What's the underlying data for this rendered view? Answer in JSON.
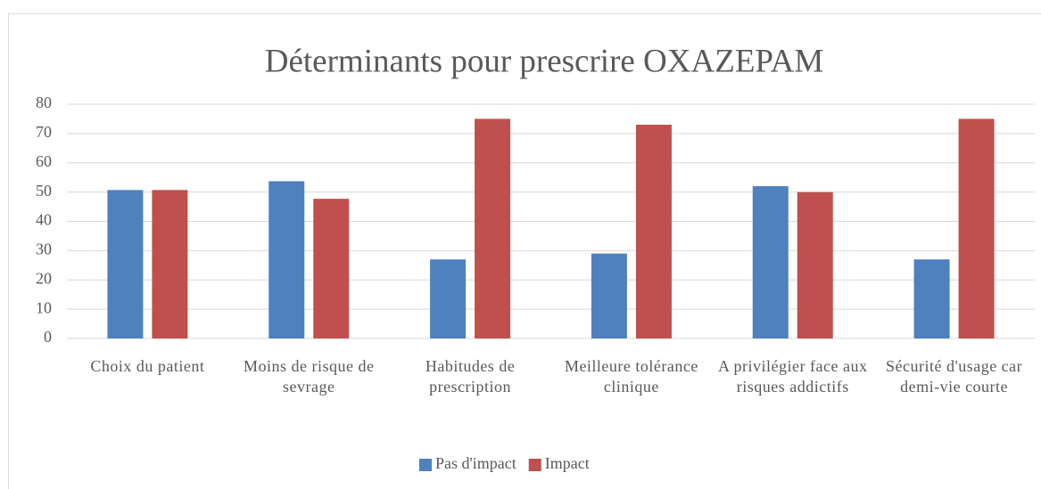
{
  "chart_data": {
    "type": "bar",
    "title": "Déterminants pour prescrire OXAZEPAM",
    "categories": [
      "Choix du patient",
      "Moins de risque de sevrage",
      "Habitudes de prescription",
      "Meilleure tolérance clinique",
      "A privilégier face aux risques addictifs",
      "Sécurité d'usage car demi-vie courte"
    ],
    "series": [
      {
        "name": "Pas d'impact",
        "color": "#4f81bd",
        "values": [
          50.7,
          53.7,
          27,
          29,
          52,
          27
        ]
      },
      {
        "name": "Impact",
        "color": "#c0504d",
        "values": [
          50.7,
          47.7,
          75,
          73,
          50,
          75
        ]
      }
    ],
    "ylim": [
      0,
      80
    ],
    "yticks": [
      0,
      10,
      20,
      30,
      40,
      50,
      60,
      70,
      80
    ],
    "grid": true,
    "legend": "bottom"
  }
}
